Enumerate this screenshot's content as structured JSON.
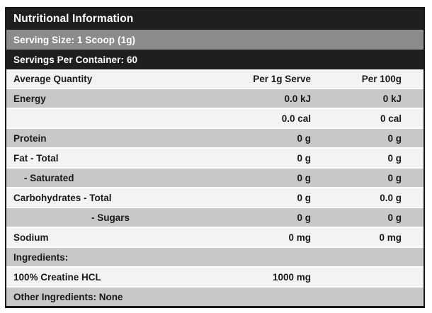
{
  "label": {
    "title": "Nutritional Information",
    "serving_size": "Serving Size: 1 Scoop (1g)",
    "servings_per_container": "Servings Per Container: 60",
    "columns": [
      "Average Quantity",
      "Per 1g Serve",
      "Per 100g"
    ],
    "rows": [
      {
        "name": "Energy",
        "per_serve": "0.0 kJ",
        "per_100g": "0 kJ"
      },
      {
        "name": "",
        "per_serve": "0.0 cal",
        "per_100g": "0 cal"
      },
      {
        "name": "Protein",
        "per_serve": "0 g",
        "per_100g": "0 g"
      },
      {
        "name": "Fat - Total",
        "per_serve": "0 g",
        "per_100g": "0 g"
      },
      {
        "name": "- Saturated",
        "per_serve": "0 g",
        "per_100g": "0 g"
      },
      {
        "name": "Carbohydrates - Total",
        "per_serve": "0 g",
        "per_100g": "0.0 g"
      },
      {
        "name": "- Sugars",
        "per_serve": "0 g",
        "per_100g": "0 g"
      },
      {
        "name": "Sodium",
        "per_serve": "0 mg",
        "per_100g": "0 mg"
      }
    ],
    "ingredients_heading": "Ingredients:",
    "ingredient": {
      "name": "100% Creatine HCL",
      "amount": "1000 mg"
    },
    "other_ingredients": "Other Ingredients: None"
  },
  "colors": {
    "bar_black": "#211e1e",
    "bar_gray": "#8b8b8b",
    "row_light": "#f3f3f2",
    "row_dark": "#c8c8c7",
    "text_dark": "#1b1918",
    "text_light": "#ffffff",
    "border": "#1a1817"
  }
}
